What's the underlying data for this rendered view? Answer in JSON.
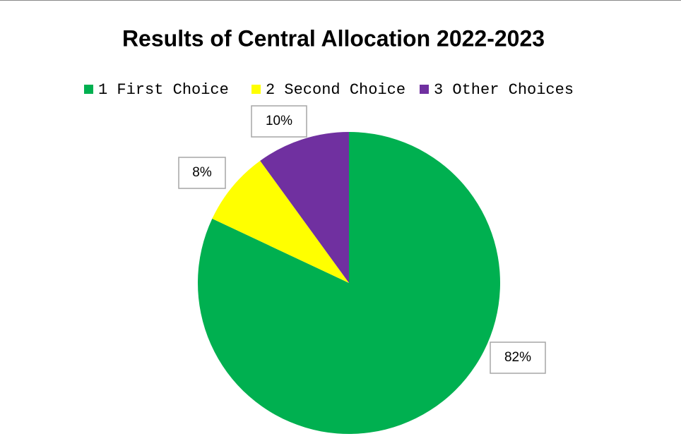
{
  "chart_data": {
    "type": "pie",
    "title": "Results of Central Allocation 2022-2023",
    "categories": [
      "1 First Choice",
      "2 Second Choice",
      "3 Other Choices"
    ],
    "values": [
      82,
      8,
      10
    ],
    "value_labels": [
      "82%",
      "8%",
      "10%"
    ],
    "colors": [
      "#00b050",
      "#ffff00",
      "#7030a0"
    ],
    "legend": "top"
  }
}
